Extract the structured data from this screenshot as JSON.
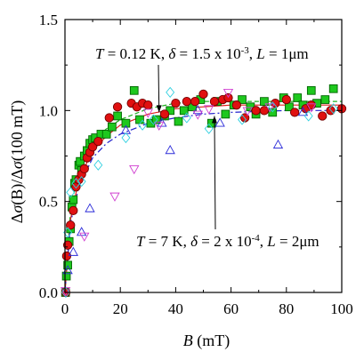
{
  "chart_data": {
    "type": "scatter",
    "title": "",
    "xlabel": {
      "var": "B",
      "unit": " (mT)"
    },
    "ylabel": {
      "pre": "Δ",
      "sigma1": "σ",
      "arg1": "(B)",
      "slash": "/Δ",
      "sigma2": "σ",
      "arg2": "(100 mT)"
    },
    "xlim": [
      0,
      100
    ],
    "ylim": [
      0,
      1.5
    ],
    "x_ticks": [
      0,
      20,
      40,
      60,
      80,
      100
    ],
    "y_ticks": [
      0.0,
      0.5,
      1.0,
      1.5
    ],
    "x_tick_labels": [
      "0",
      "20",
      "40",
      "60",
      "80",
      "100"
    ],
    "y_tick_labels": [
      "0.0",
      "0.5",
      "1.0",
      "1.5"
    ],
    "grid": false,
    "legend": "none",
    "annotations": [
      {
        "id": "top",
        "parts": [
          {
            "t": "T",
            "style": "italic"
          },
          {
            "t": " = 0.12 K, "
          },
          {
            "t": "δ",
            "style": "italic"
          },
          {
            "t": " = 1.5 x 10"
          },
          {
            "t": "-3",
            "style": "sup"
          },
          {
            "t": ", "
          },
          {
            "t": "L",
            "style": "italic"
          },
          {
            "t": " = 1μm"
          }
        ],
        "arrow_to": [
          34,
          0.99
        ]
      },
      {
        "id": "bottom",
        "parts": [
          {
            "t": "T",
            "style": "italic"
          },
          {
            "t": " = 7 K, "
          },
          {
            "t": "δ",
            "style": "italic"
          },
          {
            "t": " = 2 x 10"
          },
          {
            "t": "-4",
            "style": "sup"
          },
          {
            "t": ", "
          },
          {
            "t": "L",
            "style": "italic"
          },
          {
            "t": " = 2μm"
          }
        ],
        "arrow_to": [
          54,
          0.97
        ]
      }
    ],
    "series": [
      {
        "marker": "square",
        "color": "#1ec81e",
        "edge": "#006400",
        "filled": true,
        "points": [
          [
            0.2,
            0.0
          ],
          [
            0.5,
            0.09
          ],
          [
            1,
            0.15
          ],
          [
            1.5,
            0.28
          ],
          [
            2,
            0.35
          ],
          [
            2.5,
            0.47
          ],
          [
            3,
            0.51
          ],
          [
            3.5,
            0.6
          ],
          [
            4,
            0.62
          ],
          [
            5,
            0.7
          ],
          [
            5.5,
            0.72
          ],
          [
            6,
            0.67
          ],
          [
            7,
            0.75
          ],
          [
            8,
            0.78
          ],
          [
            9,
            0.82
          ],
          [
            10,
            0.84
          ],
          [
            11,
            0.85
          ],
          [
            13,
            0.87
          ],
          [
            15,
            0.87
          ],
          [
            17,
            0.91
          ],
          [
            19,
            0.97
          ],
          [
            22,
            0.93
          ],
          [
            25,
            1.11
          ],
          [
            27,
            0.95
          ],
          [
            31,
            0.93
          ],
          [
            33,
            0.95
          ],
          [
            36,
            0.97
          ],
          [
            38,
            1.0
          ],
          [
            41,
            0.94
          ],
          [
            43,
            1.0
          ],
          [
            46,
            1.02
          ],
          [
            49,
            1.06
          ],
          [
            53,
            0.93
          ],
          [
            55,
            1.05
          ],
          [
            58,
            0.98
          ],
          [
            61,
            1.03
          ],
          [
            64,
            1.06
          ],
          [
            67,
            1.02
          ],
          [
            69,
            0.98
          ],
          [
            72,
            1.05
          ],
          [
            75,
            0.99
          ],
          [
            79,
            1.07
          ],
          [
            81,
            1.02
          ],
          [
            84,
            1.07
          ],
          [
            86,
            1.03
          ],
          [
            89,
            1.11
          ],
          [
            91,
            1.04
          ],
          [
            94,
            1.06
          ],
          [
            97,
            1.12
          ]
        ]
      },
      {
        "marker": "circle",
        "color": "#e01010",
        "edge": "#700000",
        "filled": true,
        "points": [
          [
            0.3,
            0.0
          ],
          [
            0.6,
            0.2
          ],
          [
            1,
            0.26
          ],
          [
            2,
            0.37
          ],
          [
            3,
            0.45
          ],
          [
            4,
            0.58
          ],
          [
            5,
            0.62
          ],
          [
            6,
            0.65
          ],
          [
            7,
            0.68
          ],
          [
            8,
            0.74
          ],
          [
            9,
            0.77
          ],
          [
            10,
            0.8
          ],
          [
            12,
            0.83
          ],
          [
            16,
            0.96
          ],
          [
            19,
            1.02
          ],
          [
            24,
            1.04
          ],
          [
            26,
            1.02
          ],
          [
            28,
            1.04
          ],
          [
            30,
            1.03
          ],
          [
            36,
            0.98
          ],
          [
            40,
            1.04
          ],
          [
            44,
            1.05
          ],
          [
            47,
            1.05
          ],
          [
            50,
            1.09
          ],
          [
            54,
            1.05
          ],
          [
            57,
            1.06
          ],
          [
            59,
            1.07
          ],
          [
            62,
            1.03
          ],
          [
            65,
            0.96
          ],
          [
            69,
            1.0
          ],
          [
            72,
            1.0
          ],
          [
            76,
            1.04
          ],
          [
            80,
            1.06
          ],
          [
            83,
            0.99
          ],
          [
            87,
            1.01
          ],
          [
            89,
            1.03
          ],
          [
            93,
            0.97
          ],
          [
            96,
            1.0
          ],
          [
            100,
            1.01
          ]
        ]
      },
      {
        "marker": "triangle-up",
        "color": "none",
        "edge": "#2a2ad8",
        "filled": false,
        "points": [
          [
            1,
            0.12
          ],
          [
            3,
            0.22
          ],
          [
            6,
            0.33
          ],
          [
            9,
            0.46
          ],
          [
            22,
            0.89
          ],
          [
            35,
            0.93
          ],
          [
            38,
            0.78
          ],
          [
            48,
            1.0
          ],
          [
            56,
            0.93
          ],
          [
            77,
            0.81
          ],
          [
            86,
            0.99
          ]
        ]
      },
      {
        "marker": "triangle-down",
        "color": "none",
        "edge": "#d03fd0",
        "filled": false,
        "points": [
          [
            0.2,
            0.01
          ],
          [
            7,
            0.31
          ],
          [
            18,
            0.53
          ],
          [
            25,
            0.68
          ],
          [
            30,
            0.99
          ],
          [
            34,
            0.92
          ],
          [
            48,
            0.98
          ],
          [
            52,
            1.01
          ],
          [
            59,
            1.1
          ],
          [
            66,
            1.0
          ],
          [
            74,
            1.02
          ],
          [
            89,
            1.02
          ]
        ]
      },
      {
        "marker": "diamond",
        "color": "none",
        "edge": "#30d0e0",
        "filled": false,
        "points": [
          [
            0.3,
            0.0
          ],
          [
            1,
            0.33
          ],
          [
            2,
            0.55
          ],
          [
            4,
            0.6
          ],
          [
            6,
            0.61
          ],
          [
            12,
            0.7
          ],
          [
            22,
            0.85
          ],
          [
            28,
            0.92
          ],
          [
            32,
            0.95
          ],
          [
            38,
            1.1
          ],
          [
            44,
            0.96
          ],
          [
            52,
            0.9
          ],
          [
            64,
            0.95
          ],
          [
            75,
            1.02
          ],
          [
            88,
            0.97
          ],
          [
            97,
            1.01
          ]
        ]
      }
    ],
    "fit_lines": [
      {
        "color": "#1faf1f",
        "dash": "5,3",
        "points": [
          [
            0,
            0
          ],
          [
            2,
            0.45
          ],
          [
            5,
            0.67
          ],
          [
            10,
            0.83
          ],
          [
            15,
            0.9
          ],
          [
            20,
            0.95
          ],
          [
            30,
            1.01
          ],
          [
            40,
            1.04
          ],
          [
            50,
            1.05
          ],
          [
            60,
            1.05
          ],
          [
            80,
            1.05
          ],
          [
            100,
            1.05
          ]
        ]
      },
      {
        "color": "#e02020",
        "dash": "",
        "points": [
          [
            0,
            0
          ],
          [
            2,
            0.4
          ],
          [
            5,
            0.62
          ],
          [
            10,
            0.78
          ],
          [
            15,
            0.86
          ],
          [
            20,
            0.92
          ],
          [
            30,
            0.98
          ],
          [
            40,
            1.01
          ],
          [
            50,
            1.02
          ],
          [
            60,
            1.03
          ],
          [
            80,
            1.03
          ],
          [
            100,
            1.03
          ]
        ]
      },
      {
        "color": "#2222cc",
        "dash": "7,3,2,3",
        "points": [
          [
            0,
            0
          ],
          [
            2,
            0.38
          ],
          [
            5,
            0.58
          ],
          [
            10,
            0.74
          ],
          [
            15,
            0.82
          ],
          [
            20,
            0.87
          ],
          [
            30,
            0.93
          ],
          [
            40,
            0.96
          ],
          [
            50,
            0.98
          ],
          [
            60,
            0.99
          ],
          [
            80,
            1.0
          ],
          [
            100,
            1.0
          ]
        ]
      }
    ]
  }
}
